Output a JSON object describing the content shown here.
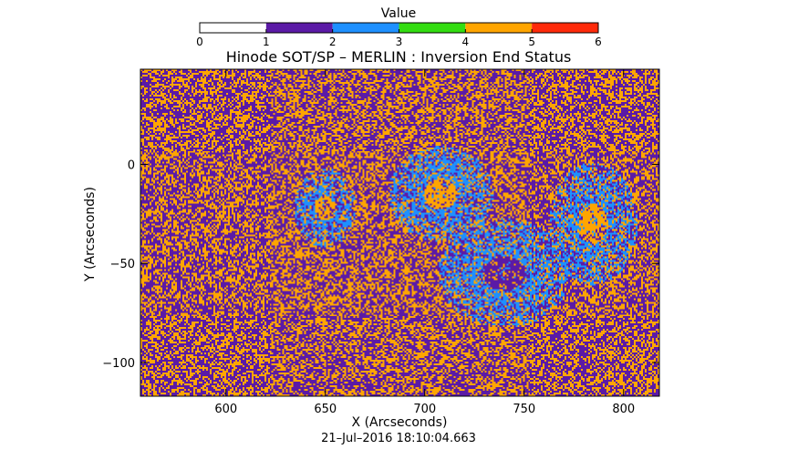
{
  "chart_data": {
    "type": "heatmap",
    "title": "Hinode SOT/SP – MERLIN : Inversion End Status",
    "xlabel": "X (Arcseconds)",
    "ylabel": "Y (Arcseconds)",
    "xlim": [
      557,
      818
    ],
    "ylim": [
      -117,
      48
    ],
    "x_ticks": [
      600,
      650,
      700,
      750,
      800
    ],
    "y_ticks": [
      0,
      -50,
      -100
    ],
    "timestamp": "21–Jul–2016 18:10:04.663",
    "colorbar": {
      "label": "Value",
      "ticks": [
        "0",
        "1",
        "2",
        "3",
        "4",
        "5",
        "6"
      ],
      "segments": [
        {
          "from": 0,
          "to": 1,
          "color": "#ffffff"
        },
        {
          "from": 1,
          "to": 2,
          "color": "#5b1aa6"
        },
        {
          "from": 2,
          "to": 3,
          "color": "#1e90ff"
        },
        {
          "from": 3,
          "to": 4,
          "color": "#33dd11"
        },
        {
          "from": 4,
          "to": 5,
          "color": "#ffa500"
        },
        {
          "from": 5,
          "to": 6,
          "color": "#ff2a0a"
        }
      ]
    },
    "map": {
      "background_mix": {
        "1": 0.55,
        "4": 0.45
      },
      "regions": [
        {
          "center": [
            650,
            -22
          ],
          "radius": [
            14,
            18
          ],
          "dominant_value": 2,
          "core_value": 4
        },
        {
          "center": [
            708,
            -15
          ],
          "radius": [
            24,
            22
          ],
          "dominant_value": 2,
          "core_value": 4
        },
        {
          "center": [
            785,
            -30
          ],
          "radius": [
            20,
            28
          ],
          "dominant_value": 2,
          "core_value": 4
        },
        {
          "center": [
            740,
            -55
          ],
          "radius": [
            30,
            25
          ],
          "dominant_value": 2,
          "core_value": 1
        }
      ]
    }
  }
}
